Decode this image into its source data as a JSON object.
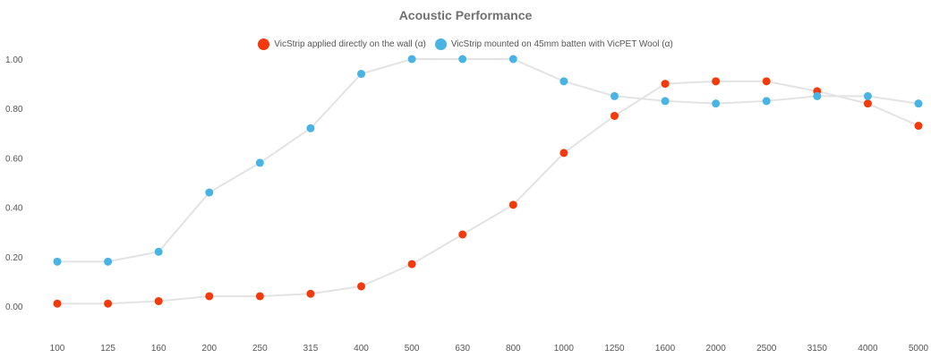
{
  "chart_data": {
    "type": "line",
    "title": "Acoustic Performance",
    "xlabel": "",
    "ylabel": "",
    "categories": [
      "100",
      "125",
      "160",
      "200",
      "250",
      "315",
      "400",
      "500",
      "630",
      "800",
      "1000",
      "1250",
      "1600",
      "2000",
      "2500",
      "3150",
      "4000",
      "5000"
    ],
    "ylim": [
      0,
      1
    ],
    "yticks": [
      "0.00",
      "0.20",
      "0.40",
      "0.60",
      "0.80",
      "1.00"
    ],
    "grid": false,
    "legend": "top-center",
    "series": [
      {
        "name": "VicStrip applied directly on the wall (α)",
        "color": "#f43a0a",
        "values": [
          0.01,
          0.01,
          0.02,
          0.04,
          0.04,
          0.05,
          0.08,
          0.17,
          0.29,
          0.41,
          0.62,
          0.77,
          0.9,
          0.91,
          0.91,
          0.87,
          0.82,
          0.73
        ]
      },
      {
        "name": "VicStrip mounted on 45mm batten with VicPET Wool (α)",
        "color": "#47b4e4",
        "values": [
          0.18,
          0.18,
          0.22,
          0.46,
          0.58,
          0.72,
          0.94,
          1.0,
          1.0,
          1.0,
          0.91,
          0.85,
          0.83,
          0.82,
          0.83,
          0.85,
          0.85,
          0.82
        ]
      }
    ],
    "line_color": "#e3e3e3"
  }
}
